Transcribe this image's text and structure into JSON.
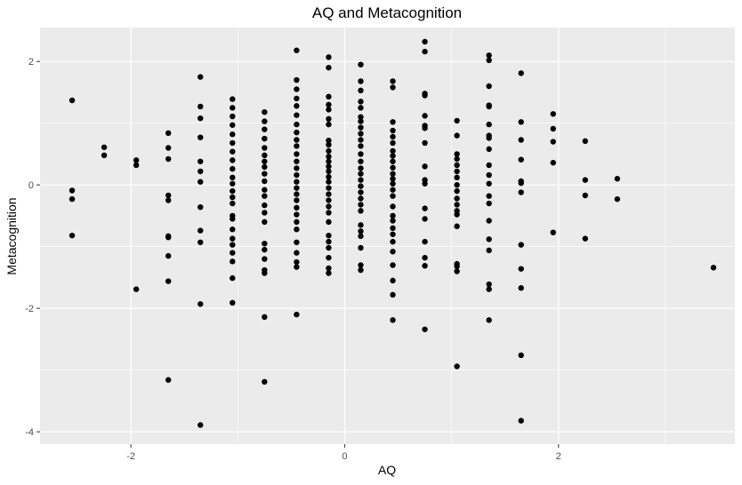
{
  "chart_data": {
    "type": "scatter",
    "title": "AQ and Metacognition",
    "xlabel": "AQ",
    "ylabel": "Metacognition",
    "xlim": [
      -2.85,
      3.65
    ],
    "ylim": [
      -4.2,
      2.55
    ],
    "x_major_ticks": [
      -2,
      0,
      2
    ],
    "y_major_ticks": [
      -4,
      -2,
      0,
      2
    ],
    "x_minor_ticks": [
      -3,
      -1,
      1,
      3
    ],
    "y_minor_ticks": [
      -3,
      -1,
      1
    ],
    "x_tick_labels": [
      "-2",
      "0",
      "2"
    ],
    "y_tick_labels": [
      "-4",
      "-2",
      "0",
      "2"
    ],
    "grid": true,
    "colors": {
      "panel": "#ebebeb",
      "grid": "#ffffff",
      "point": "#000000"
    },
    "points": [
      [
        -2.55,
        1.37
      ],
      [
        -2.55,
        -0.09
      ],
      [
        -2.55,
        -0.23
      ],
      [
        -2.55,
        -0.82
      ],
      [
        -2.25,
        0.61
      ],
      [
        -2.25,
        0.48
      ],
      [
        -1.95,
        0.4
      ],
      [
        -1.95,
        0.32
      ],
      [
        -1.95,
        -1.69
      ],
      [
        -1.65,
        0.84
      ],
      [
        -1.65,
        0.6
      ],
      [
        -1.65,
        0.42
      ],
      [
        -1.65,
        -0.17
      ],
      [
        -1.65,
        -0.25
      ],
      [
        -1.65,
        -0.83
      ],
      [
        -1.65,
        -0.85
      ],
      [
        -1.65,
        -1.15
      ],
      [
        -1.65,
        -1.56
      ],
      [
        -1.65,
        -3.16
      ],
      [
        -1.35,
        1.75
      ],
      [
        -1.35,
        1.27
      ],
      [
        -1.35,
        1.08
      ],
      [
        -1.35,
        0.77
      ],
      [
        -1.35,
        0.38
      ],
      [
        -1.35,
        0.22
      ],
      [
        -1.35,
        0.05
      ],
      [
        -1.35,
        -0.36
      ],
      [
        -1.35,
        -0.74
      ],
      [
        -1.35,
        -0.93
      ],
      [
        -1.35,
        -1.93
      ],
      [
        -1.35,
        -3.89
      ],
      [
        -1.05,
        1.39
      ],
      [
        -1.05,
        1.25
      ],
      [
        -1.05,
        1.11
      ],
      [
        -1.05,
        0.97
      ],
      [
        -1.05,
        0.82
      ],
      [
        -1.05,
        0.68
      ],
      [
        -1.05,
        0.54
      ],
      [
        -1.05,
        0.4
      ],
      [
        -1.05,
        0.26
      ],
      [
        -1.05,
        0.12
      ],
      [
        -1.05,
        0.02
      ],
      [
        -1.05,
        -0.1
      ],
      [
        -1.05,
        -0.2
      ],
      [
        -1.05,
        -0.3
      ],
      [
        -1.05,
        -0.5
      ],
      [
        -1.05,
        -0.55
      ],
      [
        -1.05,
        -0.72
      ],
      [
        -1.05,
        -0.87
      ],
      [
        -1.05,
        -0.97
      ],
      [
        -1.05,
        -1.1
      ],
      [
        -1.05,
        -1.24
      ],
      [
        -1.05,
        -1.51
      ],
      [
        -1.05,
        -1.91
      ],
      [
        -0.75,
        1.18
      ],
      [
        -0.75,
        1.03
      ],
      [
        -0.75,
        0.9
      ],
      [
        -0.75,
        0.75
      ],
      [
        -0.75,
        0.6
      ],
      [
        -0.75,
        0.48
      ],
      [
        -0.75,
        0.38
      ],
      [
        -0.75,
        0.29
      ],
      [
        -0.75,
        0.18
      ],
      [
        -0.75,
        0.06
      ],
      [
        -0.75,
        -0.08
      ],
      [
        -0.75,
        -0.18
      ],
      [
        -0.75,
        -0.33
      ],
      [
        -0.75,
        -0.45
      ],
      [
        -0.75,
        -0.6
      ],
      [
        -0.75,
        -0.95
      ],
      [
        -0.75,
        -1.05
      ],
      [
        -0.75,
        -1.2
      ],
      [
        -0.75,
        -1.38
      ],
      [
        -0.75,
        -1.43
      ],
      [
        -0.75,
        -2.14
      ],
      [
        -0.75,
        -3.19
      ],
      [
        -0.45,
        2.18
      ],
      [
        -0.45,
        1.7
      ],
      [
        -0.45,
        1.55
      ],
      [
        -0.45,
        1.4
      ],
      [
        -0.45,
        1.28
      ],
      [
        -0.45,
        1.13
      ],
      [
        -0.45,
        0.98
      ],
      [
        -0.45,
        0.85
      ],
      [
        -0.45,
        0.73
      ],
      [
        -0.45,
        0.63
      ],
      [
        -0.45,
        0.5
      ],
      [
        -0.45,
        0.38
      ],
      [
        -0.45,
        0.27
      ],
      [
        -0.45,
        0.16
      ],
      [
        -0.45,
        0.05
      ],
      [
        -0.45,
        -0.05
      ],
      [
        -0.45,
        -0.15
      ],
      [
        -0.45,
        -0.25
      ],
      [
        -0.45,
        -0.37
      ],
      [
        -0.45,
        -0.48
      ],
      [
        -0.45,
        -0.6
      ],
      [
        -0.45,
        -0.72
      ],
      [
        -0.45,
        -0.93
      ],
      [
        -0.45,
        -1.1
      ],
      [
        -0.45,
        -1.25
      ],
      [
        -0.45,
        -1.33
      ],
      [
        -0.45,
        -2.1
      ],
      [
        -0.15,
        2.07
      ],
      [
        -0.15,
        1.9
      ],
      [
        -0.15,
        1.43
      ],
      [
        -0.15,
        1.3
      ],
      [
        -0.15,
        1.22
      ],
      [
        -0.15,
        1.07
      ],
      [
        -0.15,
        0.98
      ],
      [
        -0.15,
        0.72
      ],
      [
        -0.15,
        0.65
      ],
      [
        -0.15,
        0.55
      ],
      [
        -0.15,
        0.46
      ],
      [
        -0.15,
        0.38
      ],
      [
        -0.15,
        0.3
      ],
      [
        -0.15,
        0.22
      ],
      [
        -0.15,
        0.13
      ],
      [
        -0.15,
        0.05
      ],
      [
        -0.15,
        -0.05
      ],
      [
        -0.15,
        -0.15
      ],
      [
        -0.15,
        -0.25
      ],
      [
        -0.15,
        -0.35
      ],
      [
        -0.15,
        -0.45
      ],
      [
        -0.15,
        -0.6
      ],
      [
        -0.15,
        -0.82
      ],
      [
        -0.15,
        -0.92
      ],
      [
        -0.15,
        -1.02
      ],
      [
        -0.15,
        -1.18
      ],
      [
        -0.15,
        -1.35
      ],
      [
        -0.15,
        -1.43
      ],
      [
        0.15,
        1.95
      ],
      [
        0.15,
        1.68
      ],
      [
        0.15,
        1.53
      ],
      [
        0.15,
        1.35
      ],
      [
        0.15,
        1.25
      ],
      [
        0.15,
        1.1
      ],
      [
        0.15,
        1.03
      ],
      [
        0.15,
        0.93
      ],
      [
        0.15,
        0.83
      ],
      [
        0.15,
        0.73
      ],
      [
        0.15,
        0.63
      ],
      [
        0.15,
        0.5
      ],
      [
        0.15,
        0.38
      ],
      [
        0.15,
        0.27
      ],
      [
        0.15,
        0.18
      ],
      [
        0.15,
        0.08
      ],
      [
        0.15,
        -0.02
      ],
      [
        0.15,
        -0.12
      ],
      [
        0.15,
        -0.22
      ],
      [
        0.15,
        -0.32
      ],
      [
        0.15,
        -0.42
      ],
      [
        0.15,
        -0.65
      ],
      [
        0.15,
        -0.75
      ],
      [
        0.15,
        -0.83
      ],
      [
        0.15,
        -1.02
      ],
      [
        0.15,
        -1.3
      ],
      [
        0.15,
        -1.38
      ],
      [
        0.45,
        1.68
      ],
      [
        0.45,
        1.58
      ],
      [
        0.45,
        1.02
      ],
      [
        0.45,
        0.88
      ],
      [
        0.45,
        0.78
      ],
      [
        0.45,
        0.68
      ],
      [
        0.45,
        0.55
      ],
      [
        0.45,
        0.47
      ],
      [
        0.45,
        0.38
      ],
      [
        0.45,
        0.28
      ],
      [
        0.45,
        0.18
      ],
      [
        0.45,
        0.1
      ],
      [
        0.45,
        0.02
      ],
      [
        0.45,
        -0.08
      ],
      [
        0.45,
        -0.18
      ],
      [
        0.45,
        -0.35
      ],
      [
        0.45,
        -0.5
      ],
      [
        0.45,
        -0.58
      ],
      [
        0.45,
        -0.7
      ],
      [
        0.45,
        -0.8
      ],
      [
        0.45,
        -0.92
      ],
      [
        0.45,
        -1.08
      ],
      [
        0.45,
        -1.3
      ],
      [
        0.45,
        -1.55
      ],
      [
        0.45,
        -1.78
      ],
      [
        0.45,
        -2.19
      ],
      [
        0.75,
        2.32
      ],
      [
        0.75,
        2.16
      ],
      [
        0.75,
        1.48
      ],
      [
        0.75,
        1.45
      ],
      [
        0.75,
        1.12
      ],
      [
        0.75,
        0.96
      ],
      [
        0.75,
        0.92
      ],
      [
        0.75,
        0.68
      ],
      [
        0.75,
        0.3
      ],
      [
        0.75,
        0.08
      ],
      [
        0.75,
        0.02
      ],
      [
        0.75,
        -0.38
      ],
      [
        0.75,
        -0.55
      ],
      [
        0.75,
        -0.92
      ],
      [
        0.75,
        -1.18
      ],
      [
        0.75,
        -1.31
      ],
      [
        0.75,
        -2.34
      ],
      [
        1.05,
        1.04
      ],
      [
        1.05,
        0.8
      ],
      [
        1.05,
        0.5
      ],
      [
        1.05,
        0.42
      ],
      [
        1.05,
        0.32
      ],
      [
        1.05,
        0.22
      ],
      [
        1.05,
        0.12
      ],
      [
        1.05,
        0.0
      ],
      [
        1.05,
        -0.1
      ],
      [
        1.05,
        -0.22
      ],
      [
        1.05,
        -0.32
      ],
      [
        1.05,
        -0.42
      ],
      [
        1.05,
        -0.48
      ],
      [
        1.05,
        -0.67
      ],
      [
        1.05,
        -1.28
      ],
      [
        1.05,
        -1.32
      ],
      [
        1.05,
        -1.4
      ],
      [
        1.05,
        -2.94
      ],
      [
        1.35,
        2.1
      ],
      [
        1.35,
        2.02
      ],
      [
        1.35,
        1.6
      ],
      [
        1.35,
        1.29
      ],
      [
        1.35,
        1.27
      ],
      [
        1.35,
        0.98
      ],
      [
        1.35,
        0.8
      ],
      [
        1.35,
        0.76
      ],
      [
        1.35,
        0.58
      ],
      [
        1.35,
        0.32
      ],
      [
        1.35,
        0.16
      ],
      [
        1.35,
        0.02
      ],
      [
        1.35,
        -0.18
      ],
      [
        1.35,
        -0.3
      ],
      [
        1.35,
        -0.58
      ],
      [
        1.35,
        -0.88
      ],
      [
        1.35,
        -1.06
      ],
      [
        1.35,
        -1.61
      ],
      [
        1.35,
        -1.69
      ],
      [
        1.35,
        -2.19
      ],
      [
        1.65,
        1.81
      ],
      [
        1.65,
        1.02
      ],
      [
        1.65,
        0.73
      ],
      [
        1.65,
        0.41
      ],
      [
        1.65,
        0.06
      ],
      [
        1.65,
        0.03
      ],
      [
        1.65,
        -0.12
      ],
      [
        1.65,
        -0.97
      ],
      [
        1.65,
        -1.36
      ],
      [
        1.65,
        -1.67
      ],
      [
        1.65,
        -2.76
      ],
      [
        1.65,
        -3.82
      ],
      [
        1.95,
        1.15
      ],
      [
        1.95,
        0.91
      ],
      [
        1.95,
        0.7
      ],
      [
        1.95,
        0.36
      ],
      [
        1.95,
        -0.77
      ],
      [
        2.25,
        0.71
      ],
      [
        2.25,
        0.08
      ],
      [
        2.25,
        -0.17
      ],
      [
        2.25,
        -0.87
      ],
      [
        2.55,
        0.1
      ],
      [
        2.55,
        -0.23
      ],
      [
        3.45,
        -1.34
      ]
    ]
  }
}
